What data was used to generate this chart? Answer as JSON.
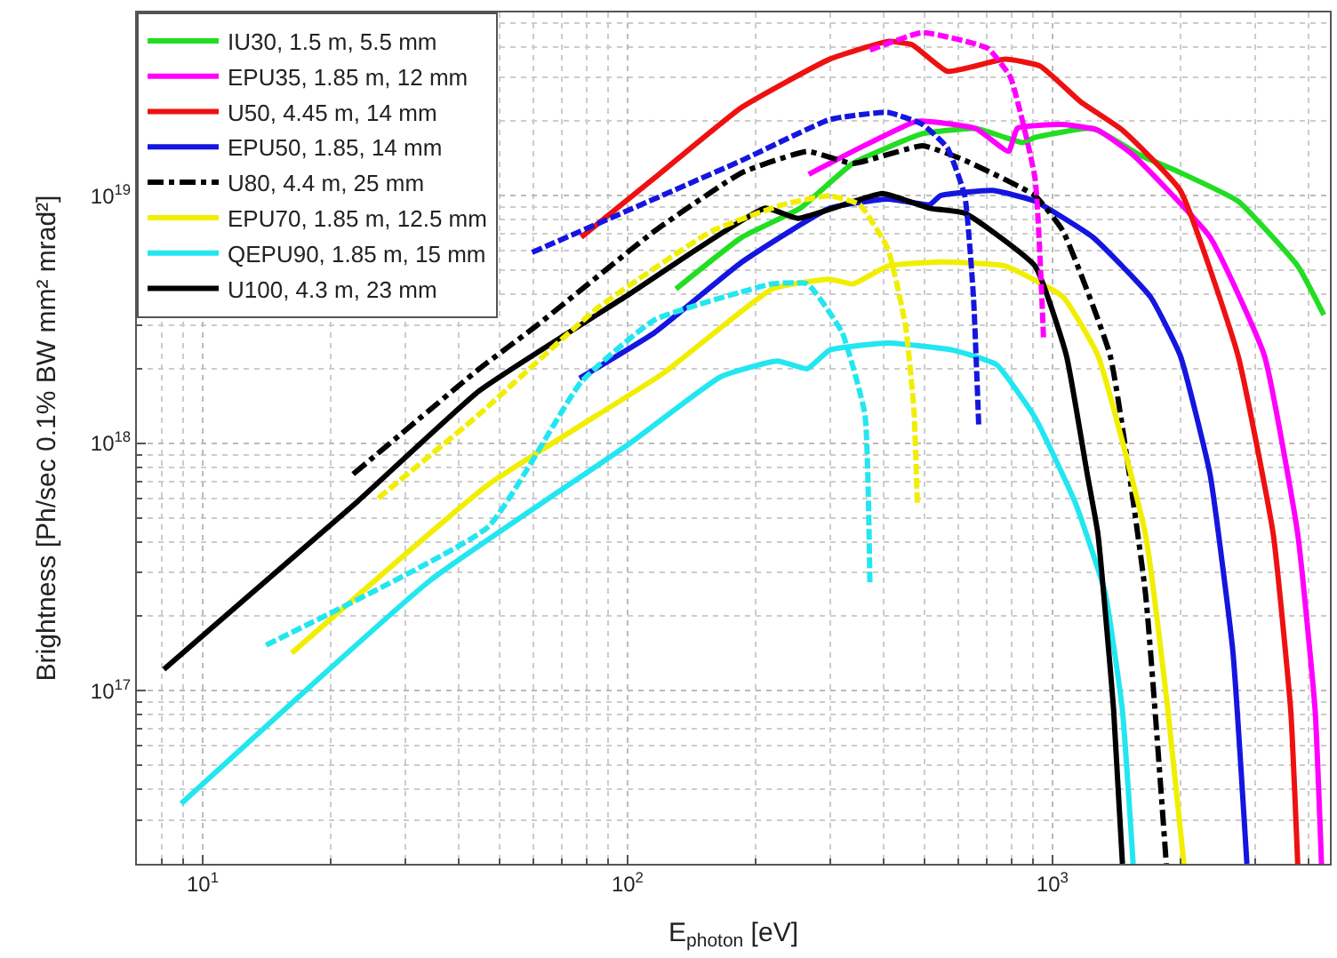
{
  "chart_data": {
    "type": "line",
    "xlabel": "E$_{photon}$ [eV]",
    "ylabel": "Brightness [Ph/sec 0.1% BW mm² mrad²]",
    "log": "xy",
    "grid": true,
    "legend": "top left",
    "marker": "none",
    "xlim": [
      7,
      4500
    ],
    "ylim": [
      2e+16,
      5.5e+19
    ],
    "xticks": [
      {
        "value": 10,
        "label": "10$^{1}$"
      },
      {
        "value": 100,
        "label": "10$^{2}$"
      },
      {
        "value": 1000,
        "label": "10$^{3}$"
      }
    ],
    "yticks": [
      {
        "value": 1e+17,
        "label": "10$^{17}$"
      },
      {
        "value": 1e+18,
        "label": "10$^{18}$"
      },
      {
        "value": 1e+19,
        "label": "10$^{19}$"
      }
    ],
    "series": [
      {
        "name": "IU30, 1.5 m, 5.5 mm",
        "color": "#22dd22",
        "line_style": "solid",
        "x": [
          130,
          186,
          255,
          339,
          495,
          659,
          774,
          851,
          910,
          1245,
          1607,
          2000,
          2735,
          3780,
          4355
        ],
        "values": [
          4.2e+18,
          6.8e+18,
          8.9e+18,
          1.35e+19,
          1.78e+19,
          1.87e+19,
          1.72e+19,
          1.64e+19,
          1.72e+19,
          1.87e+19,
          1.46e+19,
          1.24e+19,
          9.5e+18,
          5.2e+18,
          3.3e+18
        ]
      },
      {
        "name": "EPU35, 1.85 m, 12 mm",
        "color": "#ff00ff",
        "line_style": "solid",
        "x": [
          267,
          352,
          481,
          659,
          789,
          827,
          1059,
          1280,
          1549,
          2350,
          3155,
          3780,
          4155,
          4300
        ],
        "values": [
          1.22e+19,
          1.56e+19,
          2e+19,
          1.87e+19,
          1.51e+19,
          1.87e+19,
          1.94e+19,
          1.84e+19,
          1.46e+19,
          6.8e+18,
          2.26e+18,
          4.3e+17,
          8.3e+16,
          2e+16
        ]
      },
      {
        "name": "U50, 4.45 m, 14 mm",
        "color": "#ee1111",
        "line_style": "solid",
        "x": [
          77.8,
          115.8,
          186,
          299,
          410,
          468,
          566,
          774,
          936,
          1164,
          1462,
          2000,
          2735,
          3310,
          3640,
          3780
        ],
        "values": [
          6.8e+18,
          1.18e+19,
          2.28e+19,
          3.56e+19,
          4.2e+19,
          4.07e+19,
          3.18e+19,
          3.56e+19,
          3.34e+19,
          2.4e+19,
          1.84e+19,
          1.05e+19,
          2.26e+18,
          4.3e+17,
          8.3e+16,
          2e+16
        ]
      },
      {
        "name": "EPU50, 1.85, 14 mm",
        "color": "#1515e0",
        "line_style": "solid",
        "x": [
          77.1,
          115.8,
          186,
          299,
          410,
          514,
          545,
          724,
          910,
          1245,
          1702,
          2000,
          2350,
          2660,
          2870
        ],
        "values": [
          1.83e+18,
          2.8e+18,
          5.4e+18,
          8.9e+18,
          9.7e+18,
          9.2e+18,
          1e+19,
          1.05e+19,
          9.5e+18,
          6.8e+18,
          3.9e+18,
          2.26e+18,
          7.5e+17,
          1.44e+17,
          2e+16
        ]
      },
      {
        "name": "U80, 4.4 m, 25 mm",
        "color": "#000000",
        "line_style": "dashdot",
        "x": [
          22.6,
          44.8,
          61.3,
          115.8,
          186,
          265,
          339,
          495,
          622,
          910,
          1059,
          1368,
          1655,
          1854
        ],
        "values": [
          7.5e+17,
          2e+18,
          3e+18,
          7.2e+18,
          1.24e+19,
          1.51e+19,
          1.35e+19,
          1.59e+19,
          1.39e+19,
          1e+19,
          7.2e+18,
          2.26e+18,
          2.5e+17,
          2e+16
        ]
      },
      {
        "name": "EPU70, 1.85 m, 12.5 mm",
        "color": "#f2ee00",
        "line_style": "solid",
        "x": [
          16.2,
          47.0,
          121.5,
          219,
          299,
          339,
          410,
          545,
          774,
          1059,
          1280,
          1655,
          1871,
          2040
        ],
        "values": [
          1.42e+17,
          6.8e+17,
          1.92e+18,
          4.2e+18,
          4.6e+18,
          4.4e+18,
          5.2e+18,
          5.4e+18,
          5.2e+18,
          3.9e+18,
          2.26e+18,
          4.3e+17,
          8.3e+16,
          2e+16
        ]
      },
      {
        "name": "QEPU90, 1.85 m, 15 mm",
        "color": "#22e6f0",
        "line_style": "solid",
        "x": [
          8.9,
          34.4,
          100.5,
          166,
          225,
          265,
          299,
          410,
          582,
          738,
          910,
          1132,
          1330,
          1462,
          1549
        ],
        "values": [
          3.5e+16,
          2.8e+17,
          9.9e+17,
          1.86e+18,
          2.15e+18,
          2e+18,
          2.38e+18,
          2.54e+18,
          2.38e+18,
          2.08e+18,
          1.27e+18,
          5.75e+17,
          2.5e+17,
          8.3e+16,
          2e+16
        ]
      },
      {
        "name": "U100, 4.3 m, 23 mm",
        "color": "#000000",
        "line_style": "solid",
        "x": [
          8.1,
          23.1,
          44.8,
          98.6,
          211,
          252,
          398,
          514,
          622,
          910,
          1079,
          1208,
          1280,
          1394,
          1462
        ],
        "values": [
          1.22e+17,
          5.8e+17,
          1.63e+18,
          3.9e+18,
          8.9e+18,
          8.1e+18,
          1.02e+19,
          8.9e+18,
          8.5e+18,
          5.2e+18,
          2.26e+18,
          7.5e+17,
          4.3e+17,
          8.3e+16,
          2e+16
        ]
      },
      {
        "color": "#ff00ff",
        "line_style": "dashed",
        "x": [
          372,
          495,
          704,
          796,
          910,
          953
        ],
        "values": [
          3.87e+19,
          4.56e+19,
          3.94e+19,
          3.02e+19,
          1.18e+19,
          2.67e+18
        ]
      },
      {
        "color": "#1515e0",
        "line_style": "dashed",
        "x": [
          59.6,
          186,
          299,
          410,
          495,
          566,
          622,
          652,
          671
        ],
        "values": [
          5.9e+18,
          1.39e+19,
          2.03e+19,
          2.17e+19,
          1.94e+19,
          1.56e+19,
          1e+19,
          3.9e+18,
          1.17e+18
        ]
      },
      {
        "color": "#f2ee00",
        "line_style": "dashed",
        "x": [
          25.9,
          44.8,
          84.7,
          158,
          232,
          299,
          352,
          410,
          451,
          472,
          481
        ],
        "values": [
          6e+17,
          1.31e+18,
          3.5e+18,
          7.2e+18,
          9.2e+18,
          1e+19,
          9.2e+18,
          6.1e+18,
          3e+18,
          1.38e+18,
          5.75e+17
        ]
      },
      {
        "color": "#22e6f0",
        "line_style": "dashed",
        "x": [
          14.1,
          47.0,
          77.8,
          115.8,
          219,
          265,
          320,
          362,
          372
        ],
        "values": [
          1.53e+17,
          4.6e+17,
          1.77e+18,
          3.15e+18,
          4.4e+18,
          4.4e+18,
          2.8e+18,
          1.31e+18,
          2.65e+17
        ]
      }
    ]
  }
}
